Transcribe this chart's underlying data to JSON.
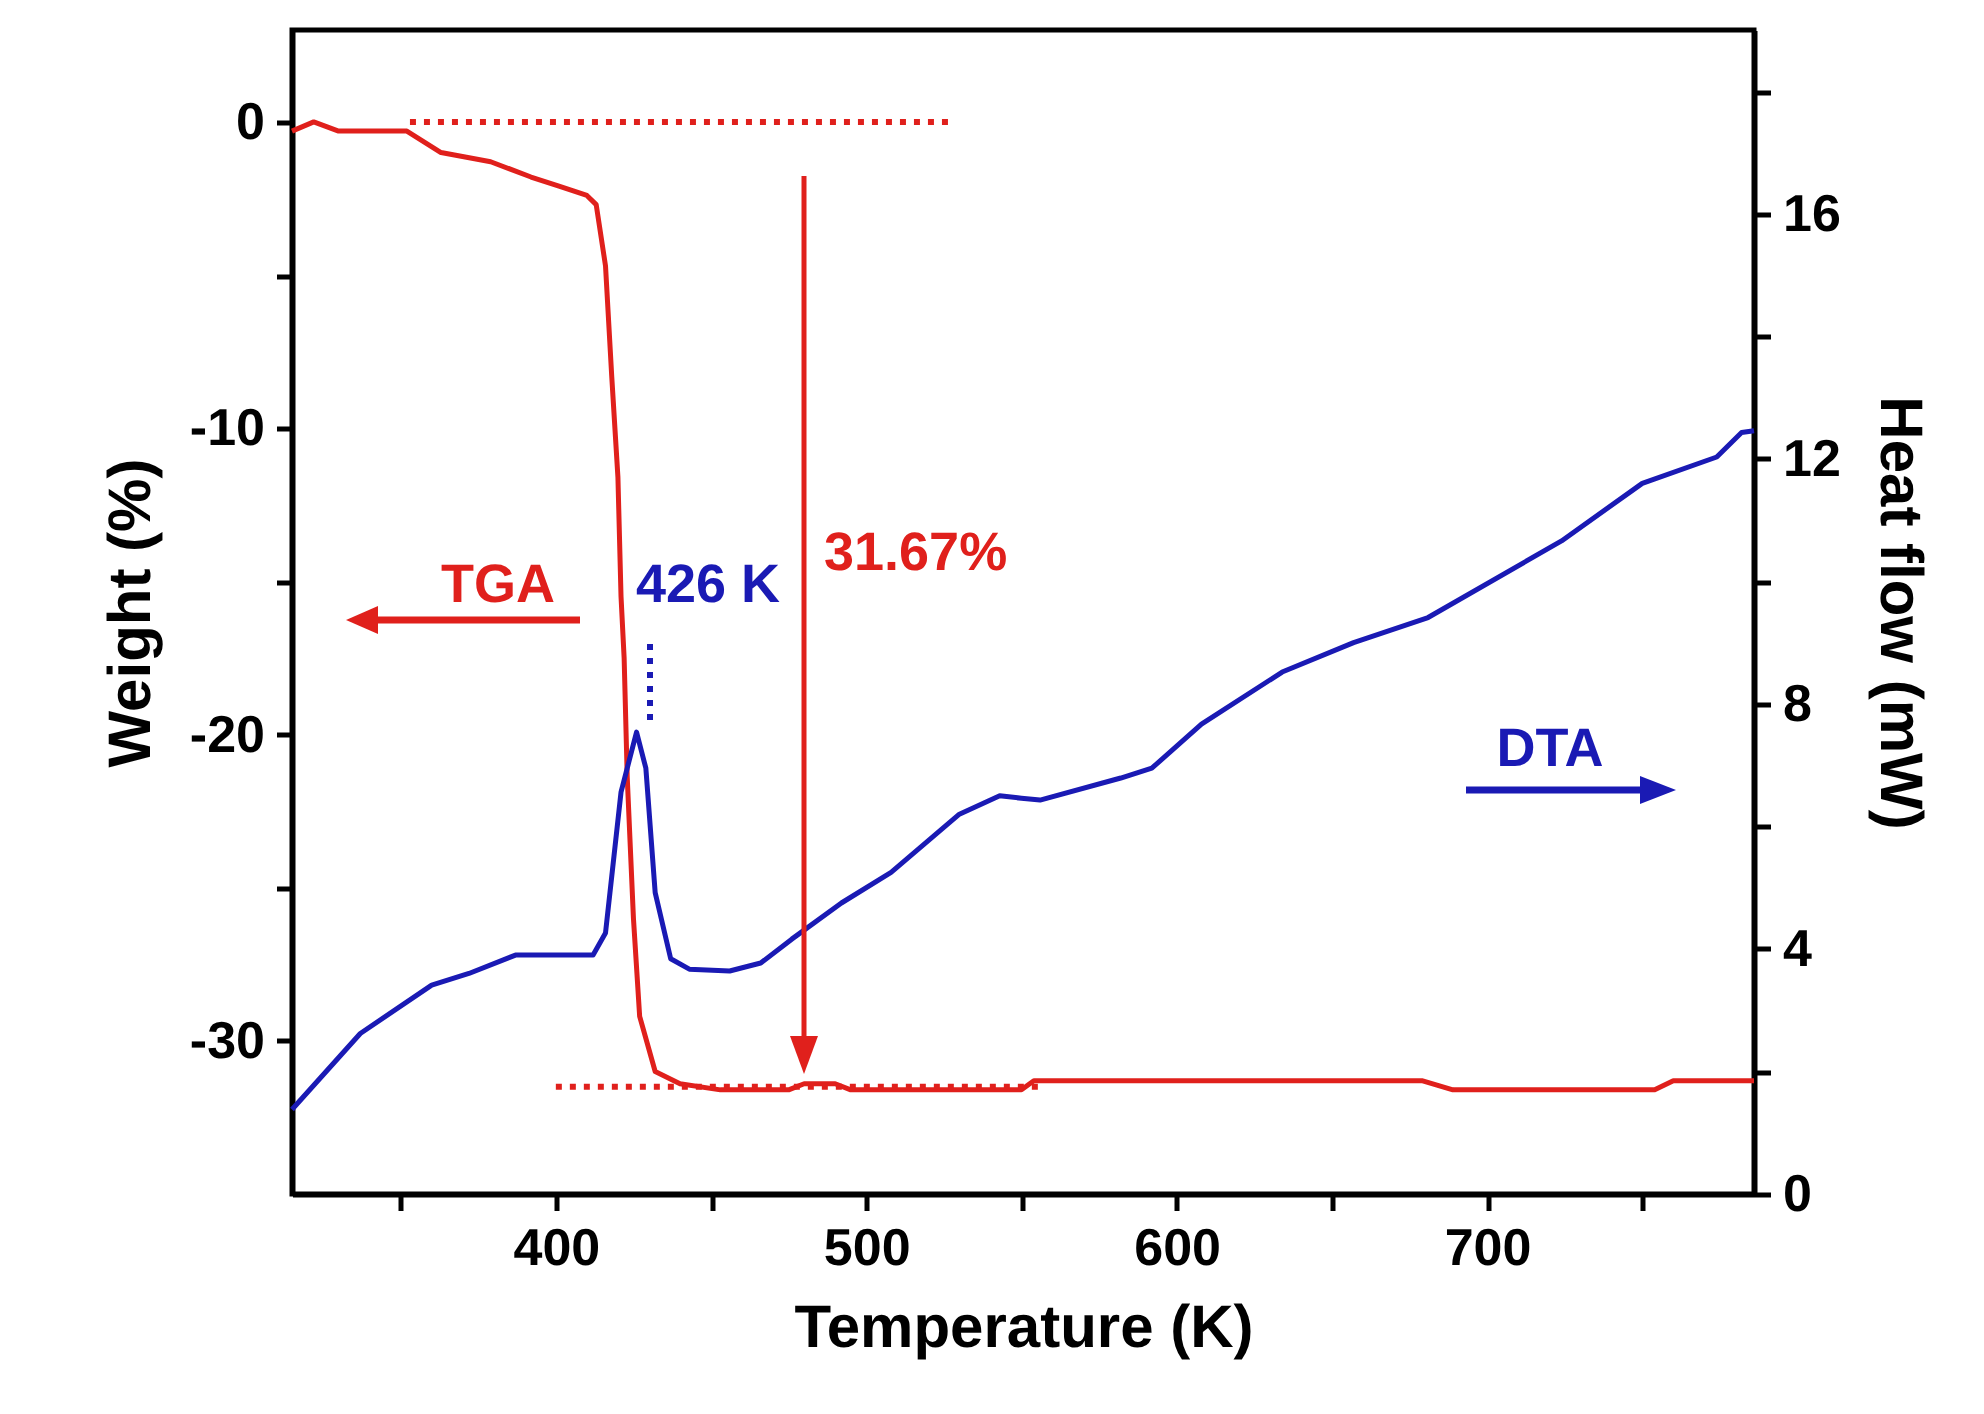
{
  "chart_data": {
    "type": "line",
    "xlabel": "Temperature  (K)",
    "ylabel": "Weight (%)",
    "y2label": "Heat flow (mW)",
    "xlim": [
      315,
      786
    ],
    "ylim": [
      -35,
      3
    ],
    "y2lim": [
      0,
      19
    ],
    "xticks": [
      {
        "value": 350,
        "label": null
      },
      400,
      {
        "value": 450,
        "label": null
      },
      500,
      {
        "value": 550,
        "label": null
      },
      600,
      {
        "value": 650,
        "label": null
      },
      700,
      {
        "value": 750,
        "label": null
      }
    ],
    "yticks": [
      -30,
      {
        "value": -25,
        "label": null
      },
      -20,
      {
        "value": -15,
        "label": null
      },
      -10,
      {
        "value": -5,
        "label": null
      },
      0
    ],
    "y2ticks": [
      0,
      {
        "value": 2,
        "label": null
      },
      4,
      {
        "value": 6,
        "label": null
      },
      8,
      {
        "value": 10,
        "label": null
      },
      12,
      {
        "value": 14,
        "label": null
      },
      16,
      {
        "value": 18,
        "label": null
      }
    ],
    "grid": false,
    "marker": "none",
    "annotations": [
      "TGA",
      "426 K",
      "31.67%",
      "DTA"
    ],
    "series": [
      {
        "color": "#e0201c",
        "x": [
          315,
          322,
          330,
          352,
          363,
          379,
          392,
          401,
          410,
          413,
          416,
          418,
          420,
          421,
          422,
          423,
          425,
          427,
          432,
          440,
          453,
          475,
          480,
          490,
          495,
          550,
          554,
          679,
          689,
          754,
          760,
          786
        ],
        "values": [
          -0.3,
          0,
          -0.3,
          -0.3,
          -1.0,
          -1.3,
          -1.8,
          -2.1,
          -2.4,
          -2.7,
          -4.7,
          -8.3,
          -11.6,
          -15.5,
          -17.5,
          -21.4,
          -26,
          -29.2,
          -31.0,
          -31.4,
          -31.6,
          -31.6,
          -31.4,
          -31.4,
          -31.6,
          -31.6,
          -31.3,
          -31.3,
          -31.6,
          -31.6,
          -31.3,
          -31.3
        ]
      },
      {
        "color": "#1a1ab4",
        "axis": "y2",
        "x": [
          315,
          337,
          360,
          372,
          387,
          412,
          416,
          421,
          426,
          429,
          432,
          437,
          443,
          456,
          466,
          476,
          492,
          508,
          530,
          543,
          550,
          556,
          582,
          592,
          608,
          634,
          657,
          681,
          724,
          750,
          774,
          782,
          786
        ],
        "values": [
          1.38,
          2.62,
          3.41,
          3.6,
          3.9,
          3.9,
          4.26,
          6.56,
          7.54,
          6.95,
          4.92,
          3.84,
          3.67,
          3.64,
          3.77,
          4.16,
          4.75,
          5.25,
          6.2,
          6.5,
          6.46,
          6.43,
          6.79,
          6.95,
          7.67,
          8.52,
          9.0,
          9.41,
          10.66,
          11.6,
          12.03,
          12.43,
          12.46
        ]
      },
      {
        "color": "#e0201c",
        "line_style": "dotted",
        "x": [
          353,
          528
        ],
        "values": [
          0,
          0
        ]
      },
      {
        "color": "#e0201c",
        "line_style": "dotted",
        "x": [
          400,
          556
        ],
        "values": [
          -31.5,
          -31.5
        ]
      }
    ]
  }
}
